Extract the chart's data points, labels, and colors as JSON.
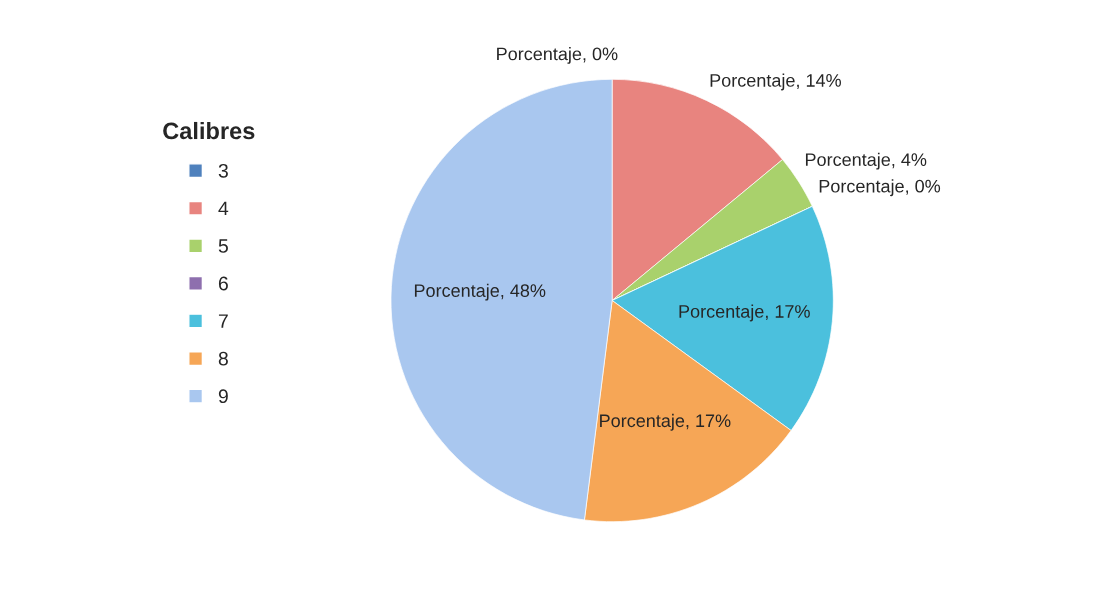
{
  "chart_data": {
    "type": "pie",
    "legend_title": "Calibres",
    "legend": "left",
    "categories": [
      "3",
      "4",
      "5",
      "6",
      "7",
      "8",
      "9"
    ],
    "values": [
      0,
      14,
      4,
      0,
      17,
      17,
      48
    ],
    "colors": [
      "#4f81bd",
      "#e8847f",
      "#a9d16c",
      "#8e6fae",
      "#4bc0dd",
      "#f6a656",
      "#a9c7ef"
    ],
    "value_labels": [
      "Porcentaje, 0%",
      "Porcentaje, 14%",
      "Porcentaje, 4%",
      "Porcentaje, 0%",
      "Porcentaje, 17%",
      "Porcentaje, 17%",
      "Porcentaje, 48%"
    ]
  }
}
